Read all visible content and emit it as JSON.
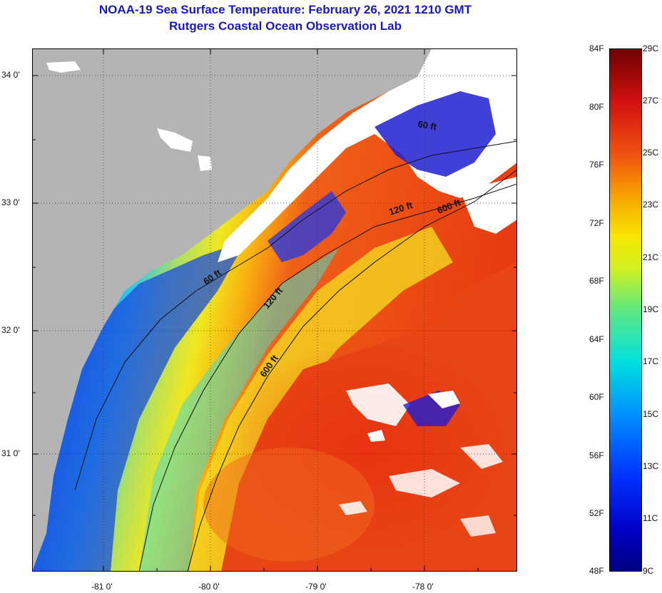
{
  "header": {
    "title": "NOAA-19 Sea Surface Temperature:  February 26, 2021 1210 GMT",
    "subtitle": "Rutgers Coastal Ocean Observation Lab"
  },
  "map": {
    "lat_labels": [
      "34 0'",
      "33 0'",
      "32 0'",
      "31 0'"
    ],
    "lon_labels": [
      "-81 0'",
      "-80 0'",
      "-79 0'",
      "-78 0'"
    ],
    "isobath_labels": [
      "60 ft",
      "120 ft",
      "600 ft",
      "60 ft",
      "120 ft",
      "600 ft"
    ]
  },
  "colorbar": {
    "fahrenheit": [
      "84F",
      "80F",
      "76F",
      "72F",
      "68F",
      "64F",
      "60F",
      "56F",
      "52F",
      "48F"
    ],
    "celsius": [
      "29C",
      "27C",
      "25C",
      "23C",
      "21C",
      "19C",
      "17C",
      "15C",
      "13C",
      "11C",
      "9C"
    ]
  },
  "colors": {
    "title": "#1a1ab4",
    "land": "#b4b4b4",
    "cloud": "#ffffff",
    "cold": "#1e1ed2",
    "warm": "#ea3d10"
  }
}
